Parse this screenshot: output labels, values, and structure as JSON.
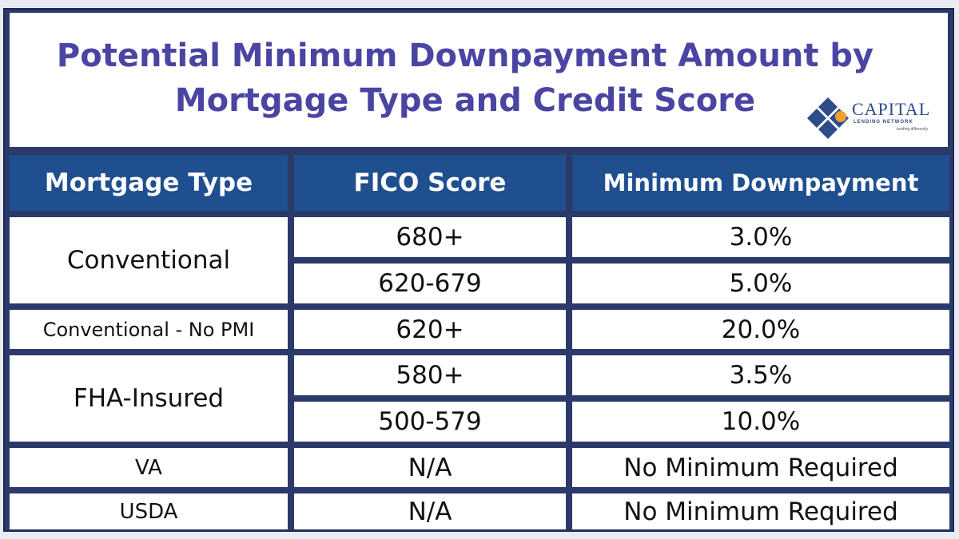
{
  "title_line1": "Potential Minimum Downpayment Amount by",
  "title_line2": "Mortgage Type and Credit Score",
  "logo": {
    "name": "CAPITAL",
    "subtitle": "LENDING NETWORK",
    "tagline": "lending differently",
    "colors": {
      "diamond": "#2e4b8a",
      "dot": "#f0a030"
    }
  },
  "table": {
    "headers": [
      "Mortgage Type",
      "FICO Score",
      "Minimum Downpayment"
    ],
    "mortgage_types": [
      "Conventional",
      "Conventional - No PMI",
      "FHA-Insured",
      "VA",
      "USDA"
    ],
    "rows": [
      {
        "fico": "680+",
        "min_down": "3.0%"
      },
      {
        "fico": "620-679",
        "min_down": "5.0%"
      },
      {
        "fico": "620+",
        "min_down": "20.0%"
      },
      {
        "fico": "580+",
        "min_down": "3.5%"
      },
      {
        "fico": "500-579",
        "min_down": "10.0%"
      },
      {
        "fico": "N/A",
        "min_down": "No Minimum Required"
      },
      {
        "fico": "N/A",
        "min_down": "No Minimum Required"
      }
    ]
  },
  "colors": {
    "title": "#4a45a3",
    "header_bg": "#1f4f8f",
    "frame": "#2b3a6b",
    "cell_bg": "#ffffff"
  }
}
